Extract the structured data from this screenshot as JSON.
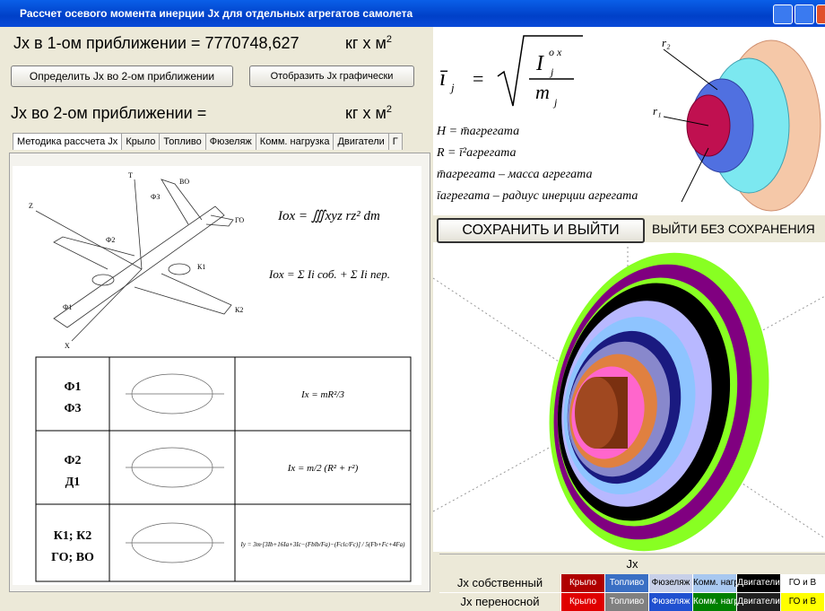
{
  "window": {
    "title": "Рассчет осевого момента инерции Jx для отдельных агрегатов самолета"
  },
  "approx1": {
    "label": "Jx в 1-ом приближении = ",
    "value": "7770748,627",
    "unit": "кг x м",
    "unit_sup": "2"
  },
  "buttons": {
    "calc2": "Определить Jx во 2-ом приближении",
    "show": "Отобразить Jx графически",
    "save": "СОХРАНИТЬ И ВЫЙТИ",
    "exit": "ВЫЙТИ БЕЗ СОХРАНЕНИЯ"
  },
  "approx2": {
    "label": "Jx во 2-ом приближении =",
    "unit": "кг x м",
    "unit_sup": "2"
  },
  "tabs": [
    "Методика рассчета Jx",
    "Крыло",
    "Топливо",
    "Фюзеляж",
    "Комм. нагрузка",
    "Двигатели",
    "Г"
  ],
  "method": {
    "plane_labels": [
      "Т",
      "Z",
      "ФЗ",
      "ВО",
      "ГО",
      "Ф2",
      "К1",
      "К2",
      "Ф1",
      "Х"
    ],
    "formulas": [
      "Iox = ∭xyz rz² dm",
      "Iox = Σ Ii соб. + Σ Ii пер."
    ],
    "table": {
      "rows": [
        {
          "codes": [
            "Ф1",
            "Ф3"
          ],
          "formula": "Ix = mR²/3"
        },
        {
          "codes": [
            "Ф2",
            "Д1"
          ],
          "formula": "Ix = m/2 (R² + r²)"
        },
        {
          "codes": [
            "К1; К2",
            "ГО; ВО"
          ],
          "formula": "Iy = 3m·[3Ib+16Ia+3Ic−(Fblb/Fa)−(Fclc/Fc)] / 5(Fb+Fc+4Fa)"
        }
      ]
    }
  },
  "inertia": {
    "lhs": "ī",
    "lhs_sub": "j",
    "eq": "=",
    "num": "I",
    "num_sup": "o x",
    "num_sub": "j",
    "den": "m",
    "den_sub": "j",
    "lines": [
      "H = m̄агрегата",
      "R = ī²агрегата",
      "m̄агрегата – масса агрегата",
      "īагрегата – радиус инерции агрегата"
    ]
  },
  "cylinder_labels": [
    "r₂",
    "r₁"
  ],
  "legend": {
    "title": "Jx",
    "rows": [
      {
        "name": "Jx собственный",
        "cells": [
          {
            "label": "Крыло",
            "color": "#b00000"
          },
          {
            "label": "Топливо",
            "color": "#3a6fc4"
          },
          {
            "label": "Фюзеляж",
            "color": "#c8d0e8"
          },
          {
            "label": "Комм. нагр.",
            "color": "#a8c8f0"
          },
          {
            "label": "Двигатели",
            "color": "#000000"
          },
          {
            "label": "ГО и В",
            "color": "#ffffff"
          }
        ]
      },
      {
        "name": "Jx переносной",
        "cells": [
          {
            "label": "Крыло",
            "color": "#e00000"
          },
          {
            "label": "Топливо",
            "color": "#808080"
          },
          {
            "label": "Фюзеляж",
            "color": "#2050d0"
          },
          {
            "label": "Комм. нагр.",
            "color": "#008000"
          },
          {
            "label": "Двигатели",
            "color": "#202020"
          },
          {
            "label": "ГО и В",
            "color": "#ffff00"
          }
        ]
      }
    ]
  }
}
